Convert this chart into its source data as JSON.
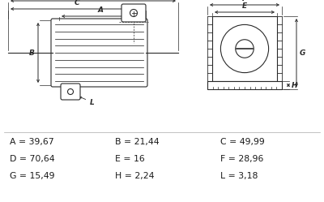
{
  "bg_color": "#ffffff",
  "line_color": "#2a2a2a",
  "text_color": "#1a1a1a",
  "dim_rows": [
    [
      "A = 39,67",
      "B = 21,44",
      "C = 49,99"
    ],
    [
      "D = 70,64",
      "E = 16",
      "F = 28,96"
    ],
    [
      "G = 15,49",
      "H = 2,24",
      "L = 3,18"
    ]
  ],
  "figw": 4.0,
  "figh": 2.49,
  "dpi": 100
}
